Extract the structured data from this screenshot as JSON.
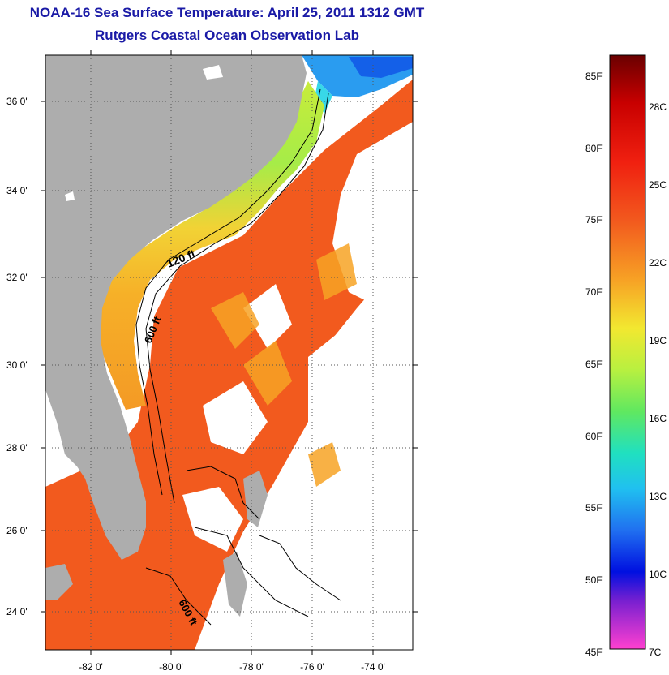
{
  "title": "NOAA-16 Sea Surface Temperature:  April 25, 2011 1312 GMT",
  "subtitle": "Rutgers Coastal Ocean Observation Lab",
  "map": {
    "lat_labels": [
      "36 0'",
      "34 0'",
      "32 0'",
      "30 0'",
      "28 0'",
      "26 0'",
      "24 0'"
    ],
    "lon_labels": [
      "-82 0'",
      "-80 0'",
      "-78 0'",
      "-76 0'",
      "-74 0'"
    ],
    "contour_labels": [
      "120 ft",
      "600 ft",
      "600 ft"
    ],
    "colors": {
      "land": "#adadad",
      "no_data": "#ffffff",
      "warm_sst": "#f25a1e",
      "mid_sst": "#f7b028",
      "cool_sst": "#8ee84a",
      "cold_sst": "#2a9cf0"
    }
  },
  "colorbar": {
    "fahrenheit_labels": [
      "85F",
      "80F",
      "75F",
      "70F",
      "65F",
      "60F",
      "55F",
      "50F",
      "45F"
    ],
    "celsius_labels": [
      "28C",
      "25C",
      "22C",
      "19C",
      "16C",
      "13C",
      "10C",
      "7C"
    ]
  }
}
